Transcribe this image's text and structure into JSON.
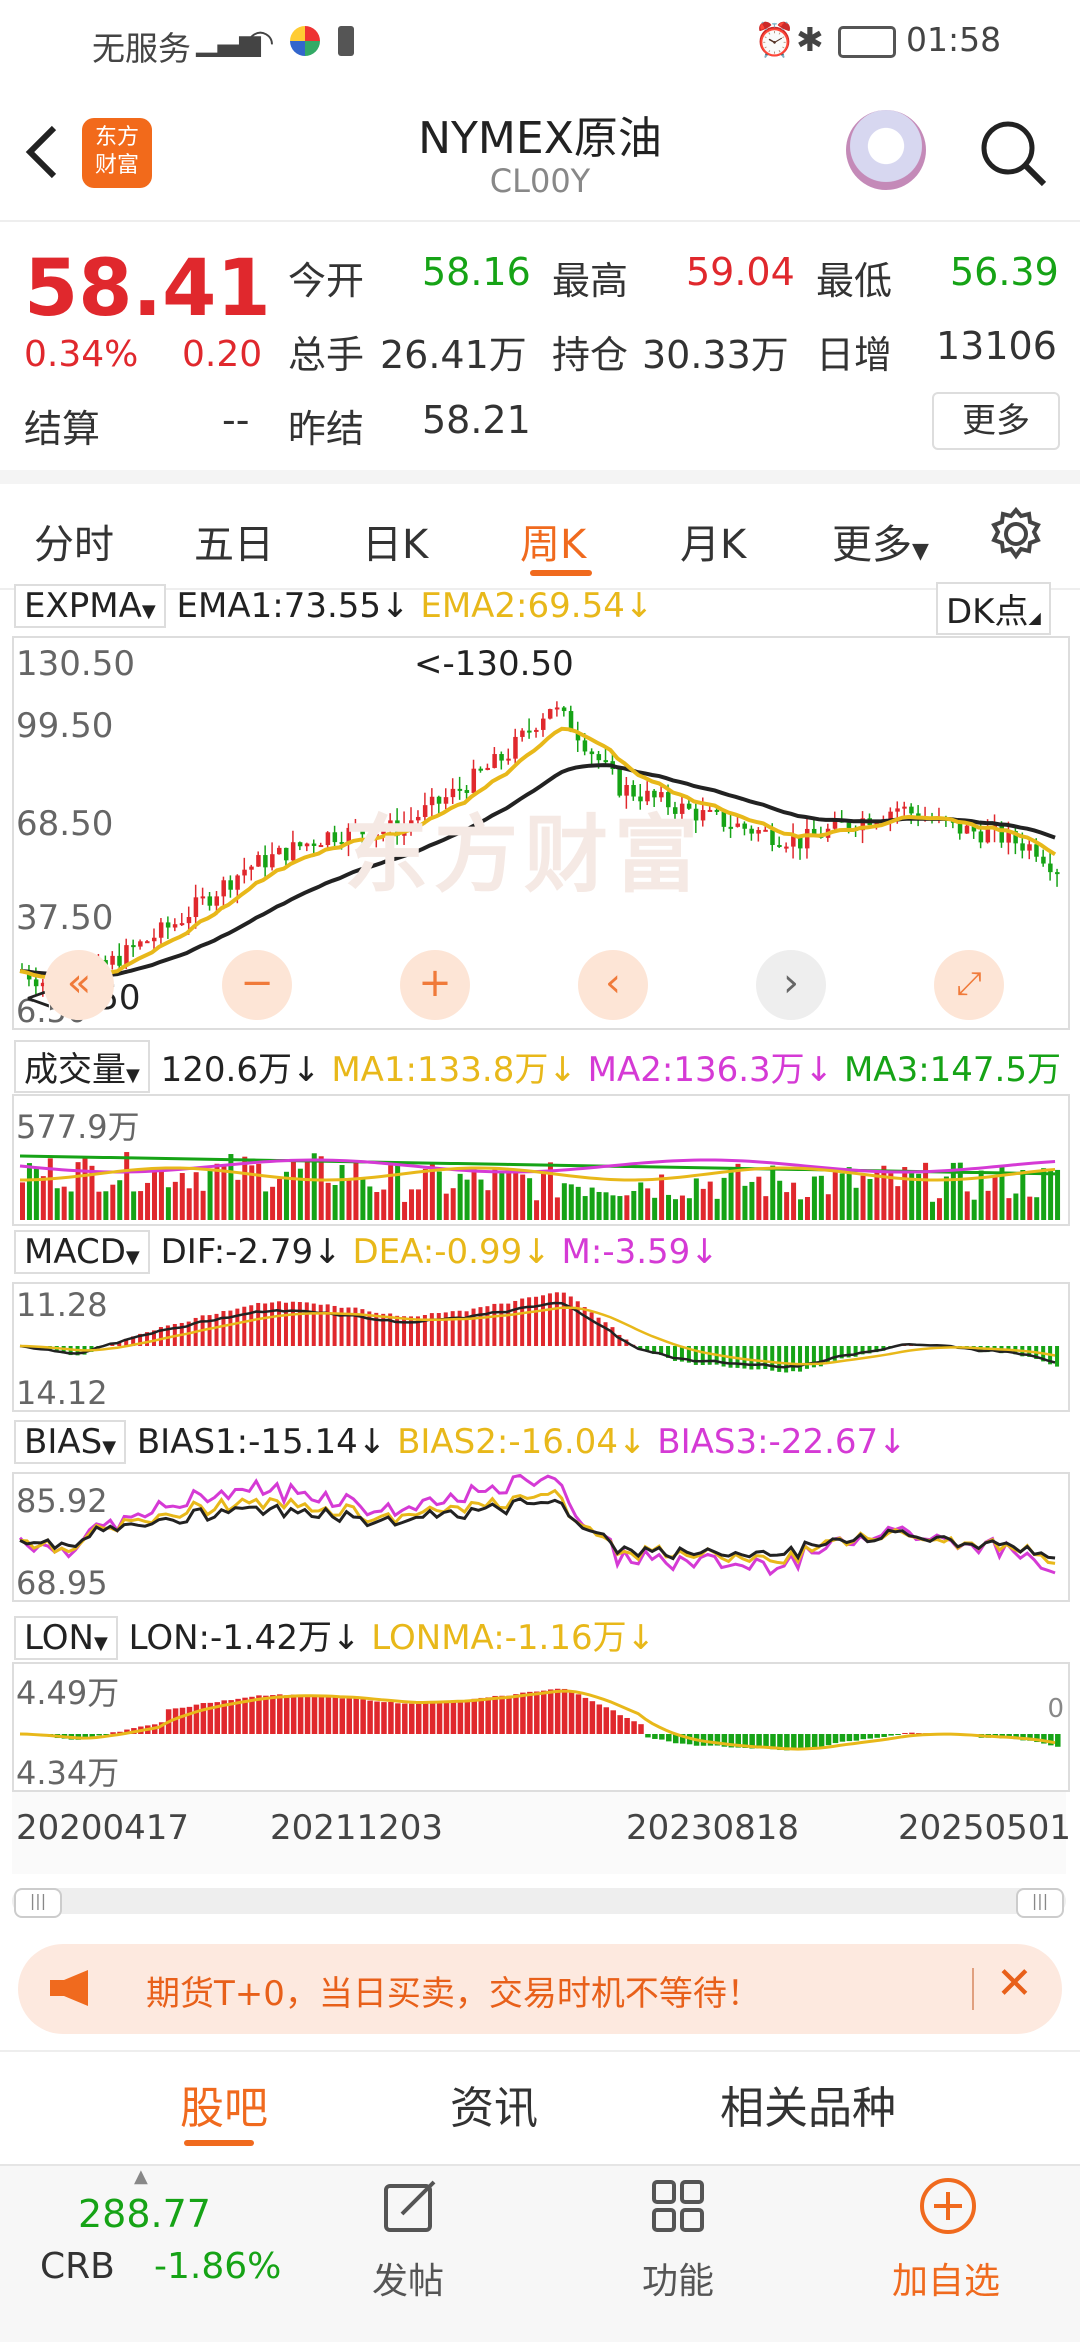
{
  "status": {
    "carrier": "无服务",
    "time": "01:58"
  },
  "header": {
    "title": "NYMEX原油",
    "code": "CL00Y",
    "logo_text": "东方\n财富"
  },
  "quote": {
    "price": "58.41",
    "change_pct": "0.34%",
    "change": "0.20",
    "open_label": "今开",
    "open": "58.16",
    "high_label": "最高",
    "high": "59.04",
    "low_label": "最低",
    "low": "56.39",
    "volume_label": "总手",
    "volume": "26.41万",
    "oi_label": "持仓",
    "oi": "30.33万",
    "daily_inc_label": "日增",
    "daily_inc": "13106",
    "settle_label": "结算",
    "settle": "--",
    "prev_settle_label": "昨结",
    "prev_settle": "58.21",
    "more_label": "更多"
  },
  "tabs": [
    {
      "label": "分时"
    },
    {
      "label": "五日"
    },
    {
      "label": "日K"
    },
    {
      "label": "周K",
      "active": true
    },
    {
      "label": "月K"
    },
    {
      "label": "更多"
    }
  ],
  "kline": {
    "indicator": "EXPMA",
    "ema1": "EMA1:73.55",
    "ema2": "EMA2:69.54",
    "dk_label": "DK点",
    "y_labels": [
      "130.50",
      "99.50",
      "68.50",
      "37.50",
      "6.50"
    ],
    "max_marker": "<-130.50",
    "min_marker": "<-6.50",
    "watermark": "东方财富"
  },
  "volume": {
    "indicator": "成交量",
    "value": "120.6万",
    "ma1": "MA1:133.8万",
    "ma2": "MA2:136.3万",
    "ma3": "MA3:147.5万",
    "top_label": "577.9万"
  },
  "macd": {
    "indicator": "MACD",
    "dif": "DIF:-2.79",
    "dea": "DEA:-0.99",
    "m": "M:-3.59",
    "top_label": "11.28",
    "bottom_label": "14.12"
  },
  "bias": {
    "indicator": "BIAS",
    "bias1": "BIAS1:-15.14",
    "bias2": "BIAS2:-16.04",
    "bias3": "BIAS3:-22.67",
    "top_label": "85.92",
    "bottom_label": "68.95"
  },
  "lon": {
    "indicator": "LON",
    "lon": "LON:-1.42万",
    "lonma": "LONMA:-1.16万",
    "top_label": "4.49万",
    "bottom_label": "4.34万",
    "zero_label": "0"
  },
  "dates": [
    "20200417",
    "20211203",
    "20230818",
    "20250501"
  ],
  "banner": {
    "text": "期货T+0，当日买卖，交易时机不等待！"
  },
  "bottom_tabs": [
    {
      "label": "股吧",
      "active": true
    },
    {
      "label": "资讯"
    },
    {
      "label": "相关品种"
    }
  ],
  "bottom_bar": {
    "crb_value": "288.77",
    "crb_label": "CRB",
    "crb_change": "-1.86%",
    "post_label": "发帖",
    "func_label": "功能",
    "add_label": "加自选"
  },
  "colors": {
    "up": "#e0282d",
    "down": "#16a316",
    "accent": "#f06a1e",
    "ema2": "#e8b81a",
    "ma2": "#d53ad5"
  }
}
